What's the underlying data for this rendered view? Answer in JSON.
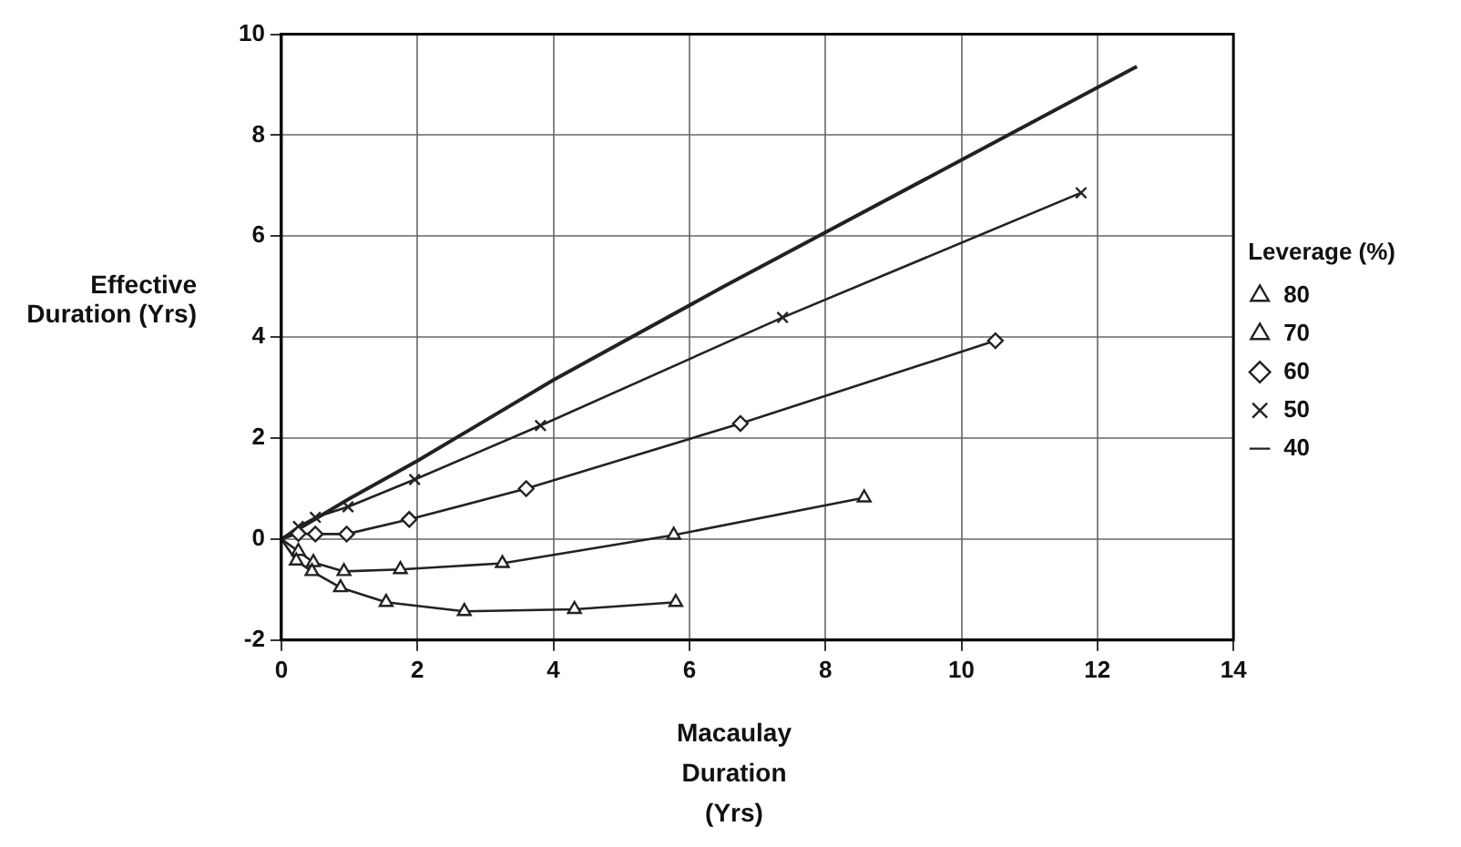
{
  "chart_data": {
    "type": "line",
    "xlabel": "Macaulay Duration (Yrs)",
    "ylabel": "Effective Duration (Yrs)",
    "legend_title": "Leverage (%)",
    "xlim": [
      0,
      14
    ],
    "xticks": [
      0,
      2,
      4,
      6,
      8,
      10,
      12,
      14
    ],
    "ylim": [
      -2,
      10
    ],
    "yticks": [
      -2,
      0,
      2,
      4,
      6,
      8,
      10
    ],
    "grid": true,
    "legend": "right",
    "line_style": "solid",
    "series": [
      {
        "name": "80",
        "color": "#222222",
        "marker": "triangle",
        "x": [
          0,
          0.22,
          0.45,
          0.87,
          1.54,
          2.69,
          4.31,
          5.8
        ],
        "values": [
          0,
          -0.43,
          -0.64,
          -0.96,
          -1.25,
          -1.43,
          -1.39,
          -1.25
        ]
      },
      {
        "name": "70",
        "color": "#222222",
        "marker": "triangle",
        "x": [
          0,
          0.25,
          0.47,
          0.92,
          1.75,
          3.25,
          5.77,
          8.57
        ],
        "values": [
          0,
          -0.24,
          -0.46,
          -0.64,
          -0.6,
          -0.48,
          0.08,
          0.82
        ]
      },
      {
        "name": "60",
        "color": "#222222",
        "marker": "diamond",
        "x": [
          0,
          0.25,
          0.5,
          0.96,
          1.88,
          3.6,
          6.75,
          10.5
        ],
        "values": [
          0,
          0.11,
          0.1,
          0.1,
          0.39,
          1.0,
          2.29,
          3.93
        ]
      },
      {
        "name": "50",
        "color": "#222222",
        "marker": "cross",
        "x": [
          0,
          0.25,
          0.5,
          0.98,
          1.96,
          3.81,
          7.37,
          11.76
        ],
        "values": [
          0,
          0.25,
          0.43,
          0.64,
          1.18,
          2.25,
          4.39,
          6.86
        ]
      },
      {
        "name": "40",
        "color": "#222222",
        "marker": "none",
        "x": [
          0,
          1,
          2,
          4,
          6.5,
          12.58
        ],
        "values": [
          0,
          0.8,
          1.55,
          3.15,
          5.0,
          9.36
        ]
      }
    ]
  }
}
